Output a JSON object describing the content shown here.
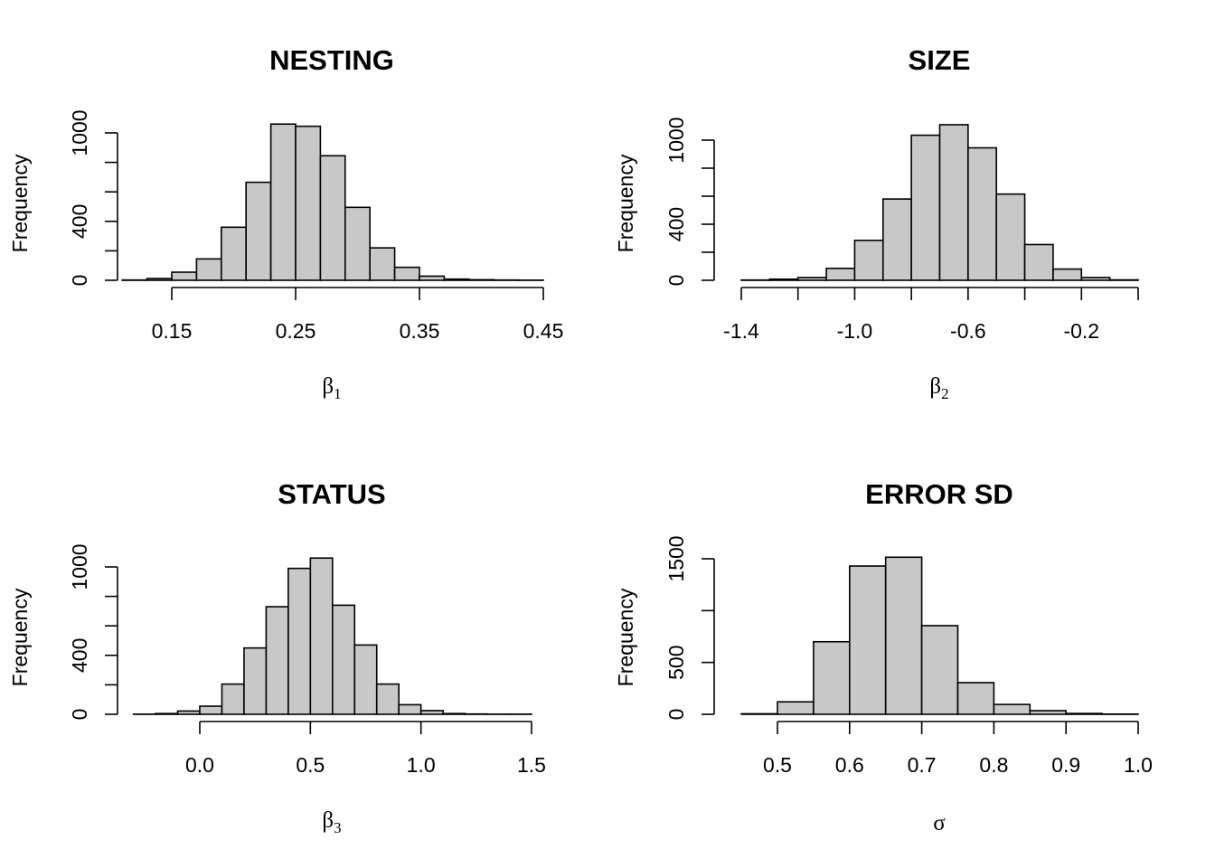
{
  "chart_data": [
    {
      "type": "bar",
      "title": "NESTING",
      "xlabel": "β",
      "xlabel_sub": "1",
      "ylabel": "Frequency",
      "bin_width": 0.02,
      "bins_start": [
        0.11,
        0.13,
        0.15,
        0.17,
        0.19,
        0.21,
        0.23,
        0.25,
        0.27,
        0.29,
        0.31,
        0.33,
        0.35,
        0.37,
        0.39,
        0.41,
        0.43
      ],
      "values": [
        2,
        12,
        55,
        145,
        360,
        665,
        1060,
        1045,
        845,
        495,
        220,
        88,
        28,
        8,
        4,
        2,
        1
      ],
      "xticks": [
        0.15,
        0.25,
        0.35,
        0.45
      ],
      "xtick_labels": [
        "0.15",
        "0.25",
        "0.35",
        "0.45"
      ],
      "xlim": [
        0.15,
        0.45
      ],
      "yticks": [
        0,
        200,
        400,
        600,
        800,
        1000
      ],
      "ytick_labels": [
        "0",
        "",
        "400",
        "",
        "",
        "1000"
      ],
      "ylim": [
        0,
        1000
      ]
    },
    {
      "type": "bar",
      "title": "SIZE",
      "xlabel": "β",
      "xlabel_sub": "2",
      "ylabel": "Frequency",
      "bin_width": 0.1,
      "bins_start": [
        -1.4,
        -1.3,
        -1.2,
        -1.1,
        -1.0,
        -0.9,
        -0.8,
        -0.7,
        -0.6,
        -0.5,
        -0.4,
        -0.3,
        -0.2,
        -0.1
      ],
      "values": [
        2,
        8,
        20,
        85,
        285,
        580,
        1035,
        1110,
        945,
        615,
        255,
        80,
        20,
        3
      ],
      "xticks": [
        -1.4,
        -1.2,
        -1.0,
        -0.8,
        -0.6,
        -0.4,
        -0.2,
        0.0
      ],
      "xtick_labels": [
        "-1.4",
        "",
        "-1.0",
        "",
        "-0.6",
        "",
        "-0.2",
        ""
      ],
      "xlim": [
        -1.4,
        0.0
      ],
      "yticks": [
        0,
        200,
        400,
        600,
        800,
        1000
      ],
      "ytick_labels": [
        "0",
        "",
        "400",
        "",
        "",
        "1000"
      ],
      "ylim": [
        0,
        1000
      ]
    },
    {
      "type": "bar",
      "title": "STATUS",
      "xlabel": "β",
      "xlabel_sub": "3",
      "ylabel": "Frequency",
      "bin_width": 0.1,
      "bins_start": [
        -0.3,
        -0.2,
        -0.1,
        0.0,
        0.1,
        0.2,
        0.3,
        0.4,
        0.5,
        0.6,
        0.7,
        0.8,
        0.9,
        1.0,
        1.1,
        1.2,
        1.3,
        1.4
      ],
      "values": [
        1,
        5,
        22,
        55,
        205,
        450,
        730,
        990,
        1060,
        740,
        470,
        205,
        65,
        25,
        5,
        2,
        1,
        1
      ],
      "xticks": [
        0.0,
        0.5,
        1.0,
        1.5
      ],
      "xtick_labels": [
        "0.0",
        "0.5",
        "1.0",
        "1.5"
      ],
      "xlim": [
        0.0,
        1.5
      ],
      "yticks": [
        0,
        200,
        400,
        600,
        800,
        1000
      ],
      "ytick_labels": [
        "0",
        "",
        "400",
        "",
        "",
        "1000"
      ],
      "ylim": [
        0,
        1000
      ]
    },
    {
      "type": "bar",
      "title": "ERROR SD",
      "xlabel": "σ",
      "xlabel_sub": "",
      "ylabel": "Frequency",
      "bin_width": 0.05,
      "bins_start": [
        0.45,
        0.5,
        0.55,
        0.6,
        0.65,
        0.7,
        0.75,
        0.8,
        0.85,
        0.9,
        0.95
      ],
      "values": [
        5,
        120,
        700,
        1430,
        1515,
        855,
        305,
        95,
        35,
        8,
        2
      ],
      "xticks": [
        0.5,
        0.6,
        0.7,
        0.8,
        0.9,
        1.0
      ],
      "xtick_labels": [
        "0.5",
        "0.6",
        "0.7",
        "0.8",
        "0.9",
        "1.0"
      ],
      "xlim": [
        0.5,
        1.0
      ],
      "yticks": [
        0,
        500,
        1000,
        1500
      ],
      "ytick_labels": [
        "0",
        "500",
        "",
        "1500"
      ],
      "ylim": [
        0,
        1500
      ]
    }
  ]
}
